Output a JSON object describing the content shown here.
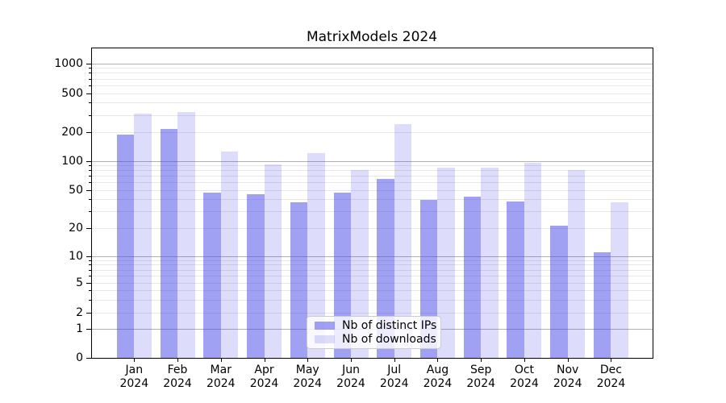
{
  "chart_data": {
    "type": "bar",
    "title": "MatrixModels 2024",
    "categories": [
      "Jan",
      "Feb",
      "Mar",
      "Apr",
      "May",
      "Jun",
      "Jul",
      "Aug",
      "Sep",
      "Oct",
      "Nov",
      "Dec"
    ],
    "year_label": "2024",
    "series": [
      {
        "name": "Nb of distinct IPs",
        "color": "#4B4BE885",
        "values": [
          190,
          215,
          47,
          45,
          37,
          47,
          65,
          39,
          42,
          38,
          21,
          11
        ]
      },
      {
        "name": "Nb of downloads",
        "color": "#4B4BE830",
        "values": [
          310,
          320,
          125,
          92,
          120,
          80,
          240,
          85,
          85,
          95,
          80,
          37
        ]
      }
    ],
    "y_axis": {
      "scale": "symlog",
      "tick_labels": [
        "0",
        "1",
        "2",
        "5",
        "10",
        "20",
        "50",
        "100",
        "200",
        "500",
        "1000"
      ],
      "ticks": [
        0,
        1,
        2,
        5,
        10,
        20,
        50,
        100,
        200,
        500,
        1000
      ],
      "major_gridlines": [
        1,
        10,
        100,
        1000
      ],
      "ylim": [
        0,
        1300
      ]
    },
    "legend": {
      "position": "lower center",
      "labels": [
        "Nb of distinct IPs",
        "Nb of downloads"
      ]
    },
    "grid": true,
    "colors": {
      "major_grid": "#b0b0b0",
      "minor_grid": "#e7e7e7",
      "axis": "#000000",
      "text": "#000000",
      "background": "#ffffff"
    }
  }
}
